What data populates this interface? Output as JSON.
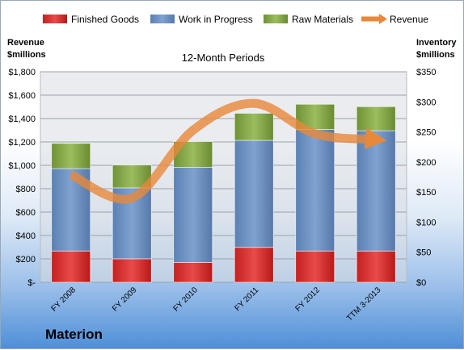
{
  "company_label": "Materion",
  "chart_data": {
    "type": "bar",
    "title": "12-Month Periods",
    "categories": [
      "FY 2008",
      "FY 2009",
      "FY 2010",
      "FY 2011",
      "FY 2012",
      "TTM 3-2013"
    ],
    "stacked": true,
    "left_axis": {
      "label_line1": "Revenue",
      "label_line2": "$millions",
      "range": [
        0,
        1800
      ],
      "ticks": [
        {
          "value": 0,
          "label": "$-"
        },
        {
          "value": 200,
          "label": "$200"
        },
        {
          "value": 400,
          "label": "$400"
        },
        {
          "value": 600,
          "label": "$600"
        },
        {
          "value": 800,
          "label": "$800"
        },
        {
          "value": 1000,
          "label": "$1,000"
        },
        {
          "value": 1200,
          "label": "$1,200"
        },
        {
          "value": 1400,
          "label": "$1,400"
        },
        {
          "value": 1600,
          "label": "$1,600"
        },
        {
          "value": 1800,
          "label": "$1,800"
        }
      ]
    },
    "right_axis": {
      "label_line1": "Inventory",
      "label_line2": "$millions",
      "range": [
        0,
        350
      ],
      "ticks": [
        {
          "value": 0,
          "label": "$0"
        },
        {
          "value": 50,
          "label": "$50"
        },
        {
          "value": 100,
          "label": "$100"
        },
        {
          "value": 150,
          "label": "$150"
        },
        {
          "value": 200,
          "label": "$200"
        },
        {
          "value": 250,
          "label": "$250"
        },
        {
          "value": 300,
          "label": "$300"
        },
        {
          "value": 350,
          "label": "$350"
        }
      ]
    },
    "grid": true,
    "legend_position": "top",
    "series": [
      {
        "name": "Finished Goods",
        "kind": "bar",
        "axis": "right",
        "color": "#d63a3a",
        "values": [
          52,
          39,
          33,
          58,
          52,
          52
        ]
      },
      {
        "name": "Work in Progress",
        "kind": "bar",
        "axis": "right",
        "color": "#6f95c6",
        "values": [
          137,
          118,
          158,
          178,
          202,
          200
        ]
      },
      {
        "name": "Raw Materials",
        "kind": "bar",
        "axis": "right",
        "color": "#8aab4d",
        "values": [
          42,
          38,
          43,
          45,
          42,
          40
        ]
      },
      {
        "name": "Revenue",
        "kind": "line",
        "axis": "left",
        "color": "#e8883a",
        "values": [
          920,
          720,
          1300,
          1530,
          1270,
          1220
        ]
      }
    ]
  }
}
